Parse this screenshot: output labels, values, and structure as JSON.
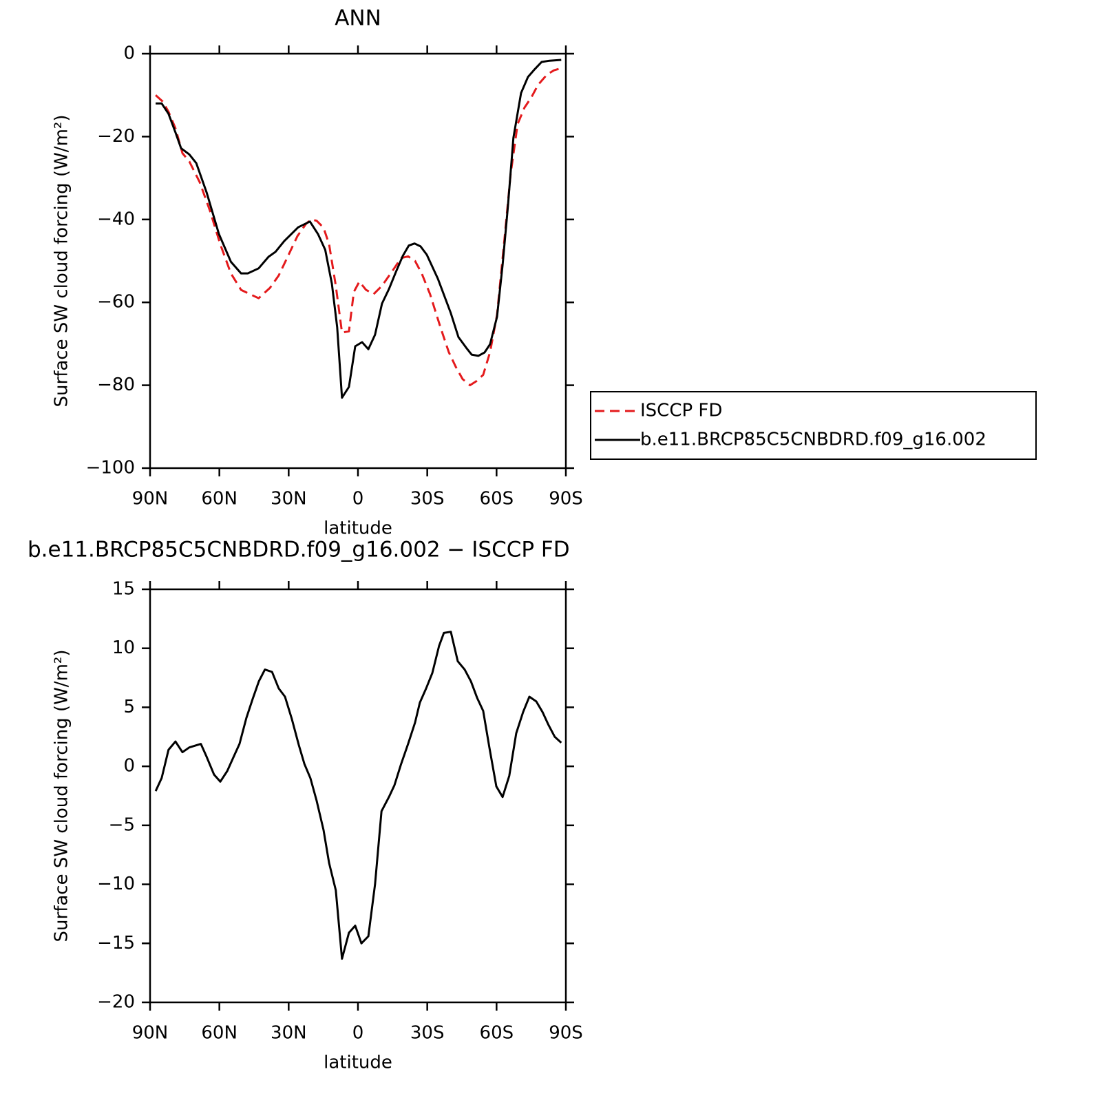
{
  "chart_data": [
    {
      "type": "line",
      "title": "ANN",
      "xlabel": "latitude",
      "ylabel": "Surface SW cloud forcing (W/m²)",
      "xlim": [
        90,
        -90
      ],
      "ylim": [
        -100,
        0
      ],
      "xticks": [
        {
          "value": 90,
          "label": "90N"
        },
        {
          "value": 60,
          "label": "60N"
        },
        {
          "value": 30,
          "label": "30N"
        },
        0,
        {
          "value": -30,
          "label": "30S"
        },
        {
          "value": -60,
          "label": "60S"
        },
        {
          "value": -90,
          "label": "90S"
        }
      ],
      "yticks": [
        0,
        {
          "value": -20,
          "label": "−20"
        },
        {
          "value": -40,
          "label": "−40"
        },
        {
          "value": -60,
          "label": "−60"
        },
        {
          "value": -80,
          "label": "−80"
        },
        {
          "value": -100,
          "label": "−100"
        }
      ],
      "legend": "right",
      "series": [
        {
          "name": "ISCCP FD",
          "color": "#e41a1c",
          "dashed": true,
          "x": [
            87.6,
            84.6,
            82,
            79,
            76,
            73,
            68.5,
            64,
            59.6,
            55,
            50.6,
            46.8,
            43,
            38.1,
            34.3,
            31.3,
            26.2,
            22.4,
            20.3,
            17.9,
            14.9,
            12.5,
            9.6,
            6.9,
            3.9,
            1.8,
            -0.6,
            -3.5,
            -6.8,
            -10.4,
            -14.8,
            -18.7,
            -21.7,
            -24.7,
            -27.6,
            -31.2,
            -35.7,
            -39.3,
            -42.3,
            -45.3,
            -48.5,
            -51.3,
            -54.2,
            -57.2,
            -60.2,
            -63.2,
            -66.1,
            -69.1,
            -72.1,
            -75.1,
            -78,
            -81.9,
            -84.9,
            -88
          ],
          "values": [
            -10,
            -11.5,
            -14,
            -18,
            -24,
            -26,
            -31,
            -38,
            -46,
            -53,
            -57,
            -58,
            -59,
            -56.5,
            -53.5,
            -50,
            -44,
            -41,
            -40,
            -40.3,
            -42,
            -46,
            -56,
            -67.3,
            -67,
            -57.5,
            -55,
            -57,
            -58,
            -56,
            -52.5,
            -49.3,
            -48.9,
            -50,
            -53,
            -58,
            -66,
            -72,
            -75.5,
            -78.5,
            -80,
            -79,
            -77.5,
            -72,
            -63,
            -46,
            -29,
            -17,
            -13,
            -10.5,
            -7.5,
            -5,
            -4,
            -3.5
          ]
        },
        {
          "name": "b.e11.BRCP85C5CNBDRD.f09_g16.002",
          "color": "#000000",
          "dashed": false,
          "x": [
            87.6,
            85,
            82,
            79,
            76.6,
            73,
            70,
            65.5,
            60.2,
            55,
            50.6,
            47.7,
            43,
            38.7,
            35.7,
            31.9,
            25.9,
            20.8,
            17.3,
            14.2,
            11.3,
            9,
            6.9,
            3.9,
            1.2,
            -1.8,
            -4.5,
            -7.4,
            -10.4,
            -13.4,
            -16.4,
            -19.4,
            -22,
            -24.5,
            -27.1,
            -29.8,
            -34.6,
            -40.2,
            -43.5,
            -46.8,
            -49.2,
            -52.1,
            -54.8,
            -57.2,
            -60.2,
            -62.6,
            -64.9,
            -67.3,
            -70.6,
            -73.6,
            -76.6,
            -79.5,
            -82.9,
            -88
          ],
          "values": [
            -12,
            -12,
            -14.5,
            -19,
            -22.8,
            -24.3,
            -26.4,
            -33.5,
            -43.5,
            -50.2,
            -53,
            -53,
            -51.8,
            -49,
            -47.8,
            -45.2,
            -41.9,
            -40.5,
            -43.5,
            -47.3,
            -55.5,
            -66,
            -83,
            -80.4,
            -70.6,
            -69.6,
            -71.3,
            -67.8,
            -60.3,
            -56.8,
            -52.7,
            -48.8,
            -46.3,
            -45.8,
            -46.5,
            -48.5,
            -54.3,
            -62.6,
            -68.4,
            -70.9,
            -72.6,
            -72.9,
            -72.1,
            -70.1,
            -63.5,
            -51,
            -36.9,
            -20.3,
            -9.5,
            -5.6,
            -3.7,
            -2,
            -1.7,
            -1.5
          ]
        }
      ]
    },
    {
      "type": "line",
      "title": "b.e11.BRCP85C5CNBDRD.f09_g16.002 − ISCCP FD",
      "xlabel": "latitude",
      "ylabel": "Surface SW cloud forcing (W/m²)",
      "xlim": [
        90,
        -90
      ],
      "ylim": [
        -20,
        15
      ],
      "xticks": [
        {
          "value": 90,
          "label": "90N"
        },
        {
          "value": 60,
          "label": "60N"
        },
        {
          "value": 30,
          "label": "30N"
        },
        0,
        {
          "value": -30,
          "label": "30S"
        },
        {
          "value": -60,
          "label": "60S"
        },
        {
          "value": -90,
          "label": "90S"
        }
      ],
      "yticks": [
        15,
        10,
        5,
        0,
        {
          "value": -5,
          "label": "−5"
        },
        {
          "value": -10,
          "label": "−10"
        },
        {
          "value": -15,
          "label": "−15"
        },
        {
          "value": -20,
          "label": "−20"
        }
      ],
      "color": "#000000",
      "x": [
        87.6,
        85,
        82,
        79,
        76,
        73,
        68,
        65.5,
        62.3,
        59.6,
        56.6,
        53.6,
        51.3,
        48.3,
        45.6,
        42.9,
        40.3,
        37.2,
        34.3,
        31.6,
        28.6,
        25.6,
        23.2,
        20.6,
        17.9,
        14.9,
        12.5,
        9.6,
        6.9,
        3.9,
        1.2,
        -1.5,
        -4.5,
        -7.4,
        -10.2,
        -13.4,
        -15.8,
        -18.7,
        -21.7,
        -24.7,
        -26.8,
        -29.5,
        -32.2,
        -35.1,
        -37.2,
        -40.2,
        -43.2,
        -46.2,
        -48.9,
        -51.6,
        -54.2,
        -56.9,
        -59.9,
        -62.6,
        -65.5,
        -68.5,
        -71.5,
        -74.2,
        -77.2,
        -79.9,
        -82.5,
        -85.2,
        -88
      ],
      "values": [
        -2.1,
        -1,
        1.4,
        2.1,
        1.2,
        1.6,
        1.9,
        0.8,
        -0.7,
        -1.3,
        -0.4,
        0.9,
        1.9,
        4.1,
        5.7,
        7.2,
        8.2,
        8,
        6.6,
        5.9,
        4,
        1.8,
        0.2,
        -1,
        -2.9,
        -5.4,
        -8.2,
        -10.5,
        -16.3,
        -14.1,
        -13.5,
        -15,
        -14.4,
        -10,
        -3.8,
        -2.6,
        -1.6,
        0.2,
        1.9,
        3.7,
        5.4,
        6.6,
        7.9,
        10.2,
        11.3,
        11.4,
        8.9,
        8.2,
        7.2,
        5.8,
        4.7,
        1.6,
        -1.7,
        -2.6,
        -0.8,
        2.8,
        4.6,
        5.9,
        5.5,
        4.6,
        3.5,
        2.5,
        2
      ]
    }
  ]
}
